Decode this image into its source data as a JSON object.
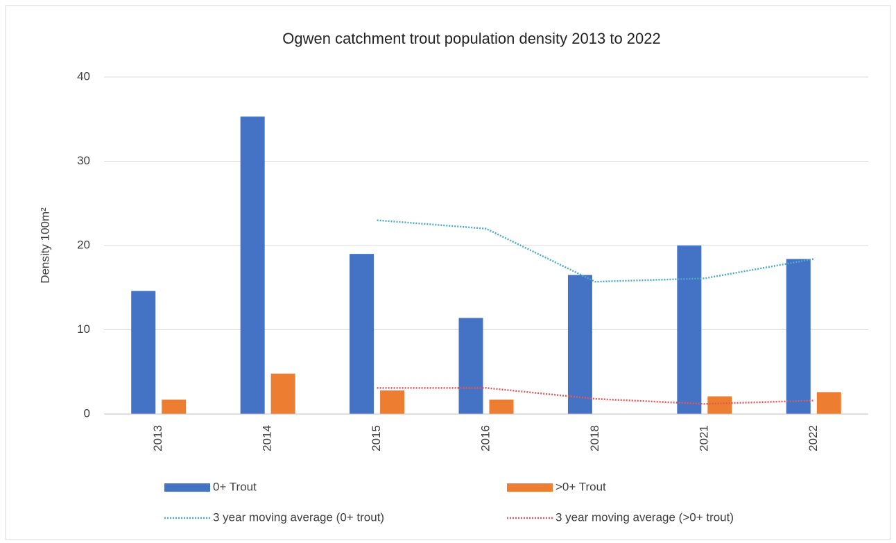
{
  "chart_data": {
    "type": "bar",
    "title": "Ogwen catchment trout population density 2013 to 2022",
    "y_label": "Density 100m²",
    "categories": [
      "2013",
      "2014",
      "2015",
      "2016",
      "2018",
      "2021",
      "2022"
    ],
    "series": [
      {
        "name": "0+ Trout",
        "type": "bar",
        "color": "#4472c4",
        "values": [
          14.6,
          35.3,
          19.0,
          11.4,
          16.5,
          20.0,
          18.4
        ]
      },
      {
        "name": ">0+ Trout",
        "type": "bar",
        "color": "#ed7d31",
        "values": [
          1.7,
          4.8,
          2.8,
          1.7,
          0,
          2.1,
          2.6
        ]
      },
      {
        "name": "3 year moving average (0+ trout)",
        "type": "line",
        "dash": "dotted",
        "color": "#4bacc6",
        "values": [
          null,
          null,
          23.0,
          22.0,
          15.7,
          16.1,
          18.4
        ]
      },
      {
        "name": "3 year moving average (>0+ trout)",
        "type": "line",
        "dash": "dotted",
        "color": "#e05a5a",
        "values": [
          null,
          null,
          3.1,
          3.1,
          1.8,
          1.2,
          1.6
        ]
      }
    ],
    "ylim": [
      0,
      40
    ],
    "yticks": [
      0,
      10,
      20,
      30,
      40
    ],
    "grid": true,
    "legend": "bottom"
  }
}
